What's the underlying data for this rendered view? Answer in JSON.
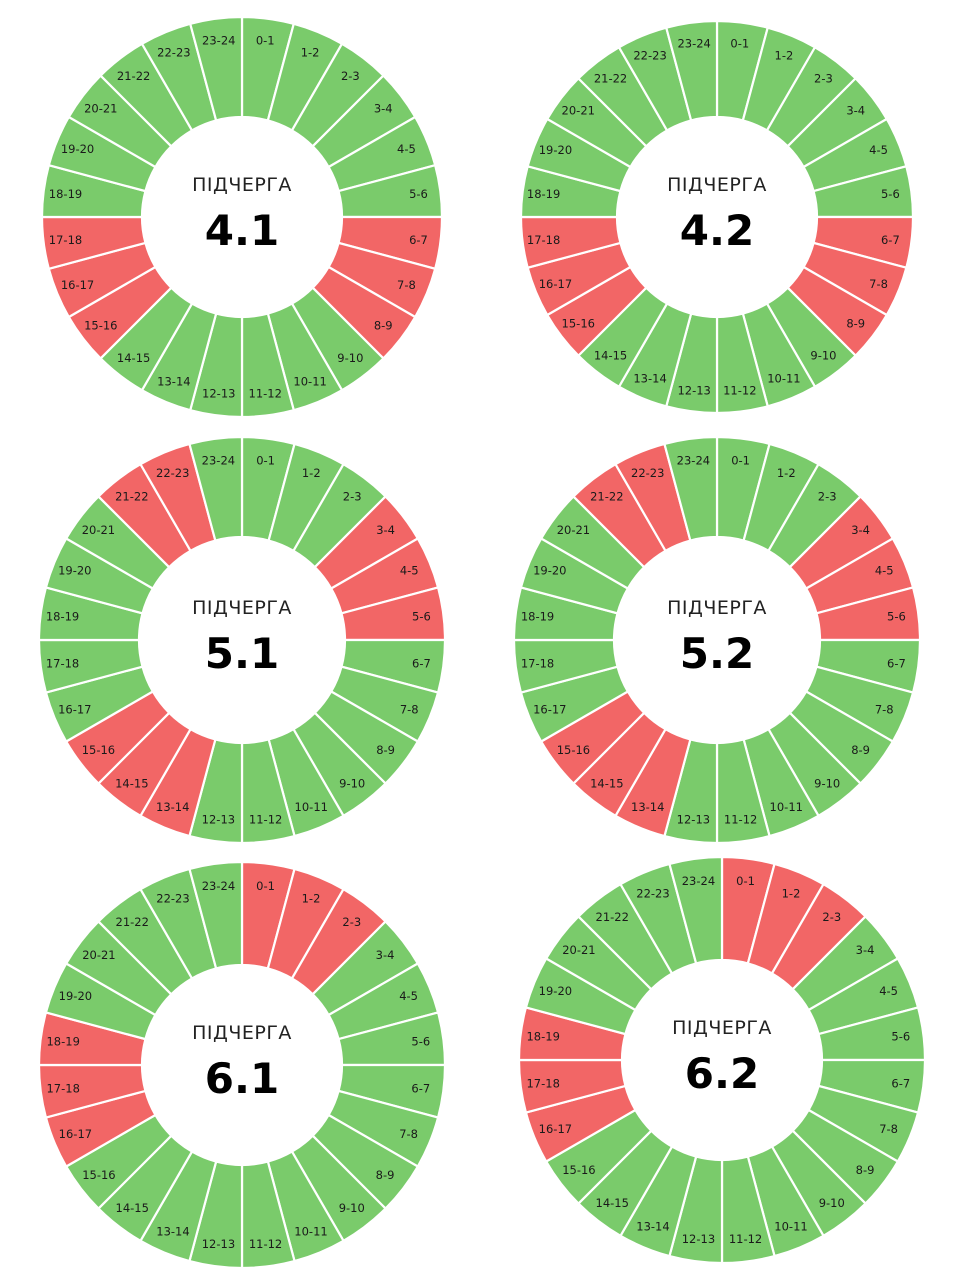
{
  "colors": {
    "on": "#7acb6b",
    "off": "#f26666",
    "divider": "#ffffff",
    "background": "#ffffff"
  },
  "center_label": "ПІДЧЕРГА",
  "chart_data": [
    {
      "type": "pie",
      "queue": "4.1",
      "categories": [
        "0-1",
        "1-2",
        "2-3",
        "3-4",
        "4-5",
        "5-6",
        "6-7",
        "7-8",
        "8-9",
        "9-10",
        "10-11",
        "11-12",
        "12-13",
        "13-14",
        "14-15",
        "15-16",
        "16-17",
        "17-18",
        "18-19",
        "19-20",
        "20-21",
        "21-22",
        "22-23",
        "23-24"
      ],
      "status": [
        "on",
        "on",
        "on",
        "on",
        "on",
        "on",
        "off",
        "off",
        "off",
        "on",
        "on",
        "on",
        "on",
        "on",
        "on",
        "off",
        "off",
        "off",
        "on",
        "on",
        "on",
        "on",
        "on",
        "on"
      ]
    },
    {
      "type": "pie",
      "queue": "4.2",
      "categories": [
        "0-1",
        "1-2",
        "2-3",
        "3-4",
        "4-5",
        "5-6",
        "6-7",
        "7-8",
        "8-9",
        "9-10",
        "10-11",
        "11-12",
        "12-13",
        "13-14",
        "14-15",
        "15-16",
        "16-17",
        "17-18",
        "18-19",
        "19-20",
        "20-21",
        "21-22",
        "22-23",
        "23-24"
      ],
      "status": [
        "on",
        "on",
        "on",
        "on",
        "on",
        "on",
        "off",
        "off",
        "off",
        "on",
        "on",
        "on",
        "on",
        "on",
        "on",
        "off",
        "off",
        "off",
        "on",
        "on",
        "on",
        "on",
        "on",
        "on"
      ]
    },
    {
      "type": "pie",
      "queue": "5.1",
      "categories": [
        "0-1",
        "1-2",
        "2-3",
        "3-4",
        "4-5",
        "5-6",
        "6-7",
        "7-8",
        "8-9",
        "9-10",
        "10-11",
        "11-12",
        "12-13",
        "13-14",
        "14-15",
        "15-16",
        "16-17",
        "17-18",
        "18-19",
        "19-20",
        "20-21",
        "21-22",
        "22-23",
        "23-24"
      ],
      "status": [
        "on",
        "on",
        "on",
        "off",
        "off",
        "off",
        "on",
        "on",
        "on",
        "on",
        "on",
        "on",
        "on",
        "off",
        "off",
        "off",
        "on",
        "on",
        "on",
        "on",
        "on",
        "off",
        "off",
        "on"
      ]
    },
    {
      "type": "pie",
      "queue": "5.2",
      "categories": [
        "0-1",
        "1-2",
        "2-3",
        "3-4",
        "4-5",
        "5-6",
        "6-7",
        "7-8",
        "8-9",
        "9-10",
        "10-11",
        "11-12",
        "12-13",
        "13-14",
        "14-15",
        "15-16",
        "16-17",
        "17-18",
        "18-19",
        "19-20",
        "20-21",
        "21-22",
        "22-23",
        "23-24"
      ],
      "status": [
        "on",
        "on",
        "on",
        "off",
        "off",
        "off",
        "on",
        "on",
        "on",
        "on",
        "on",
        "on",
        "on",
        "off",
        "off",
        "off",
        "on",
        "on",
        "on",
        "on",
        "on",
        "off",
        "off",
        "on"
      ]
    },
    {
      "type": "pie",
      "queue": "6.1",
      "categories": [
        "0-1",
        "1-2",
        "2-3",
        "3-4",
        "4-5",
        "5-6",
        "6-7",
        "7-8",
        "8-9",
        "9-10",
        "10-11",
        "11-12",
        "12-13",
        "13-14",
        "14-15",
        "15-16",
        "16-17",
        "17-18",
        "18-19",
        "19-20",
        "20-21",
        "21-22",
        "22-23",
        "23-24"
      ],
      "status": [
        "off",
        "off",
        "off",
        "on",
        "on",
        "on",
        "on",
        "on",
        "on",
        "on",
        "on",
        "on",
        "on",
        "on",
        "on",
        "on",
        "off",
        "off",
        "off",
        "on",
        "on",
        "on",
        "on",
        "on"
      ]
    },
    {
      "type": "pie",
      "queue": "6.2",
      "categories": [
        "0-1",
        "1-2",
        "2-3",
        "3-4",
        "4-5",
        "5-6",
        "6-7",
        "7-8",
        "8-9",
        "9-10",
        "10-11",
        "11-12",
        "12-13",
        "13-14",
        "14-15",
        "15-16",
        "16-17",
        "17-18",
        "18-19",
        "19-20",
        "20-21",
        "21-22",
        "22-23",
        "23-24"
      ],
      "status": [
        "off",
        "off",
        "off",
        "on",
        "on",
        "on",
        "on",
        "on",
        "on",
        "on",
        "on",
        "on",
        "on",
        "on",
        "on",
        "on",
        "off",
        "off",
        "off",
        "on",
        "on",
        "on",
        "on",
        "on"
      ]
    }
  ]
}
